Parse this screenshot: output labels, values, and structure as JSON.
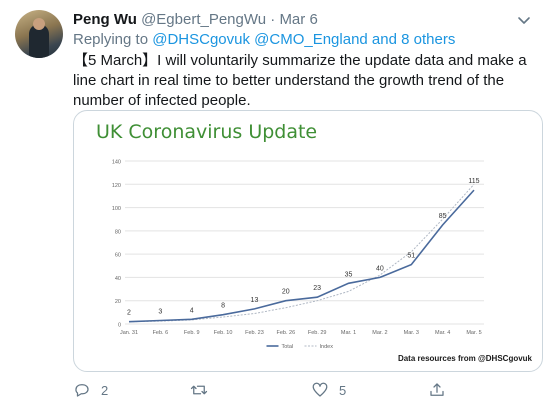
{
  "tweet": {
    "display_name": "Peng Wu",
    "handle": "@Egbert_PengWu",
    "separator": " · ",
    "date": "Mar 6",
    "reply_prefix": "Replying to ",
    "reply_handles": "@DHSCgovuk @CMO_England and 8 others",
    "text": "【5 March】I will voluntarily summarize the update data and make a line chart in real time to better understand the growth trend of the number of infected people."
  },
  "card": {
    "title": "UK Coronavirus Update",
    "credit": "Data resources from @DHSCgovuk"
  },
  "chart_data": {
    "type": "line",
    "title": "UK Coronavirus Update",
    "categories": [
      "Jan. 31",
      "Feb. 6",
      "Feb. 9",
      "Feb. 10",
      "Feb. 23",
      "Feb. 26",
      "Feb. 29",
      "Mar. 1",
      "Mar. 2",
      "Mar. 3",
      "Mar. 4",
      "Mar. 5"
    ],
    "series": [
      {
        "name": "Total",
        "values": [
          2,
          3,
          4,
          8,
          13,
          20,
          23,
          35,
          40,
          51,
          85,
          115
        ],
        "color": "#4a6a9c"
      },
      {
        "name": "Index",
        "values": [
          2,
          2.5,
          3.5,
          6,
          9,
          14,
          20,
          28,
          42,
          62,
          90,
          120
        ],
        "color": "#b0b8c4"
      }
    ],
    "yticks": [
      0,
      20,
      40,
      60,
      80,
      100,
      120,
      140
    ],
    "ylim": [
      0,
      140
    ],
    "grid": true,
    "legend": "bottom"
  },
  "actions": {
    "reply_count": "2",
    "retweet_count": "",
    "like_count": "5"
  },
  "colors": {
    "accent": "#1b95e0",
    "title_green": "#3f8f35",
    "muted": "#657786"
  }
}
